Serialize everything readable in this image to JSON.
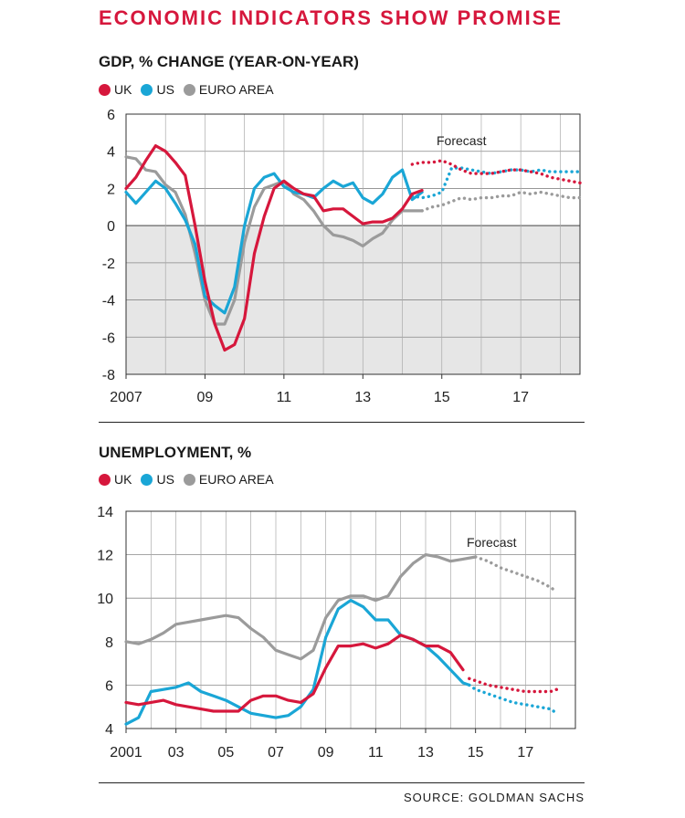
{
  "title": "ECONOMIC INDICATORS SHOW PROMISE",
  "source": "SOURCE: GOLDMAN SACHS",
  "colors": {
    "uk": "#d6173c",
    "us": "#1aa6d6",
    "euro": "#9b9b9b",
    "accent": "#d6173c",
    "negative_shade": "#e6e6e6"
  },
  "chart_data": [
    {
      "type": "line",
      "title": "GDP, % CHANGE (YEAR-ON-YEAR)",
      "legend": [
        "UK",
        "US",
        "EURO AREA"
      ],
      "annotation": "Forecast",
      "xlabel": "",
      "ylabel": "",
      "xlim": [
        2007,
        2018.5
      ],
      "ylim": [
        -8,
        6
      ],
      "yticks": [
        6,
        4,
        2,
        0,
        -2,
        -4,
        -6,
        -8
      ],
      "ytick_labels": [
        "6",
        "4",
        "2",
        "0",
        "-2",
        "-4",
        "-6",
        "-8"
      ],
      "xtick_labels": [
        "2007",
        "09",
        "11",
        "13",
        "15",
        "17"
      ],
      "xtick_values": [
        2007,
        2009,
        2011,
        2013,
        2015,
        2017
      ],
      "shade_below_zero": true,
      "series": [
        {
          "name": "UK",
          "key": "uk",
          "actual": {
            "x": [
              2007.0,
              2007.25,
              2007.5,
              2007.75,
              2008.0,
              2008.25,
              2008.5,
              2008.75,
              2009.0,
              2009.25,
              2009.5,
              2009.75,
              2010.0,
              2010.25,
              2010.5,
              2010.75,
              2011.0,
              2011.25,
              2011.5,
              2011.75,
              2012.0,
              2012.25,
              2012.5,
              2012.75,
              2013.0,
              2013.25,
              2013.5,
              2013.75,
              2014.0,
              2014.25,
              2014.5
            ],
            "y": [
              2.0,
              2.6,
              3.5,
              4.3,
              4.0,
              3.4,
              2.7,
              0.0,
              -3.0,
              -5.3,
              -6.7,
              -6.4,
              -5.0,
              -1.5,
              0.5,
              2.0,
              2.4,
              2.0,
              1.7,
              1.6,
              0.8,
              0.9,
              0.9,
              0.5,
              0.1,
              0.2,
              0.2,
              0.4,
              0.9,
              1.7,
              1.9
            ]
          },
          "forecast": {
            "x": [
              2014.25,
              2014.5,
              2014.75,
              2015.0,
              2015.25,
              2015.5,
              2015.75,
              2016.0,
              2016.25,
              2016.5,
              2016.75,
              2017.0,
              2017.25,
              2017.5,
              2017.75,
              2018.0,
              2018.25,
              2018.5
            ],
            "y": [
              3.3,
              3.4,
              3.4,
              3.5,
              3.3,
              3.0,
              2.8,
              2.8,
              2.8,
              2.9,
              3.0,
              3.0,
              2.9,
              2.8,
              2.6,
              2.5,
              2.4,
              2.3
            ]
          }
        },
        {
          "name": "US",
          "key": "us",
          "actual": {
            "x": [
              2007.0,
              2007.25,
              2007.5,
              2007.75,
              2008.0,
              2008.25,
              2008.5,
              2008.75,
              2009.0,
              2009.25,
              2009.5,
              2009.75,
              2010.0,
              2010.25,
              2010.5,
              2010.75,
              2011.0,
              2011.25,
              2011.5,
              2011.75,
              2012.0,
              2012.25,
              2012.5,
              2012.75,
              2013.0,
              2013.25,
              2013.5,
              2013.75,
              2014.0,
              2014.25,
              2014.5
            ],
            "y": [
              1.8,
              1.2,
              1.8,
              2.4,
              2.0,
              1.2,
              0.3,
              -1.0,
              -3.8,
              -4.3,
              -4.7,
              -3.3,
              0.0,
              2.0,
              2.6,
              2.8,
              2.1,
              1.8,
              1.7,
              1.5,
              2.0,
              2.4,
              2.1,
              2.3,
              1.5,
              1.2,
              1.7,
              2.6,
              3.0,
              1.4,
              1.8
            ]
          },
          "forecast": {
            "x": [
              2014.25,
              2014.5,
              2014.75,
              2015.0,
              2015.25,
              2015.5,
              2015.75,
              2016.0,
              2016.25,
              2016.5,
              2016.75,
              2017.0,
              2017.25,
              2017.5,
              2017.75,
              2018.0,
              2018.25,
              2018.5
            ],
            "y": [
              1.6,
              1.5,
              1.6,
              1.8,
              3.1,
              3.1,
              3.0,
              2.9,
              2.8,
              2.9,
              3.0,
              3.0,
              2.9,
              3.0,
              2.9,
              2.9,
              2.9,
              2.9
            ]
          }
        },
        {
          "name": "EURO AREA",
          "key": "euro",
          "actual": {
            "x": [
              2007.0,
              2007.25,
              2007.5,
              2007.75,
              2008.0,
              2008.25,
              2008.5,
              2008.75,
              2009.0,
              2009.25,
              2009.5,
              2009.75,
              2010.0,
              2010.25,
              2010.5,
              2010.75,
              2011.0,
              2011.25,
              2011.5,
              2011.75,
              2012.0,
              2012.25,
              2012.5,
              2012.75,
              2013.0,
              2013.25,
              2013.5,
              2013.75,
              2014.0,
              2014.25,
              2014.5
            ],
            "y": [
              3.7,
              3.6,
              3.0,
              2.9,
              2.2,
              1.8,
              0.6,
              -1.5,
              -4.0,
              -5.3,
              -5.3,
              -4.0,
              -0.9,
              1.0,
              2.0,
              2.2,
              2.4,
              1.7,
              1.4,
              0.8,
              0.0,
              -0.5,
              -0.6,
              -0.8,
              -1.1,
              -0.7,
              -0.4,
              0.3,
              0.8,
              0.8,
              0.8
            ]
          },
          "forecast": {
            "x": [
              2014.5,
              2014.75,
              2015.0,
              2015.25,
              2015.5,
              2015.75,
              2016.0,
              2016.25,
              2016.5,
              2016.75,
              2017.0,
              2017.25,
              2017.5,
              2017.75,
              2018.0,
              2018.25,
              2018.5
            ],
            "y": [
              0.8,
              1.0,
              1.1,
              1.3,
              1.5,
              1.4,
              1.5,
              1.5,
              1.6,
              1.6,
              1.8,
              1.7,
              1.8,
              1.7,
              1.6,
              1.5,
              1.5
            ]
          }
        }
      ]
    },
    {
      "type": "line",
      "title": "UNEMPLOYMENT, %",
      "legend": [
        "UK",
        "US",
        "EURO AREA"
      ],
      "annotation": "Forecast",
      "xlabel": "",
      "ylabel": "",
      "xlim": [
        2001,
        2019
      ],
      "ylim": [
        4,
        14
      ],
      "yticks": [
        14,
        12,
        10,
        8,
        6,
        4
      ],
      "ytick_labels": [
        "14",
        "12",
        "10",
        "8",
        "6",
        "4"
      ],
      "xtick_labels": [
        "2001",
        "03",
        "05",
        "07",
        "09",
        "11",
        "13",
        "15",
        "17"
      ],
      "xtick_values": [
        2001,
        2003,
        2005,
        2007,
        2009,
        2011,
        2013,
        2015,
        2017
      ],
      "shade_below_zero": false,
      "series": [
        {
          "name": "UK",
          "key": "uk",
          "actual": {
            "x": [
              2001.0,
              2001.5,
              2002.0,
              2002.5,
              2003.0,
              2003.5,
              2004.0,
              2004.5,
              2005.0,
              2005.5,
              2006.0,
              2006.5,
              2007.0,
              2007.5,
              2008.0,
              2008.5,
              2009.0,
              2009.5,
              2010.0,
              2010.5,
              2011.0,
              2011.5,
              2012.0,
              2012.5,
              2013.0,
              2013.5,
              2014.0,
              2014.5
            ],
            "y": [
              5.2,
              5.1,
              5.2,
              5.3,
              5.1,
              5.0,
              4.9,
              4.8,
              4.8,
              4.8,
              5.3,
              5.5,
              5.5,
              5.3,
              5.2,
              5.6,
              6.8,
              7.8,
              7.8,
              7.9,
              7.7,
              7.9,
              8.3,
              8.1,
              7.8,
              7.8,
              7.5,
              6.7
            ]
          },
          "forecast": {
            "x": [
              2014.75,
              2015.0,
              2015.5,
              2016.0,
              2016.5,
              2017.0,
              2017.5,
              2018.0,
              2018.25
            ],
            "y": [
              6.3,
              6.2,
              6.0,
              5.9,
              5.8,
              5.7,
              5.7,
              5.7,
              5.8
            ]
          }
        },
        {
          "name": "US",
          "key": "us",
          "actual": {
            "x": [
              2001.0,
              2001.5,
              2002.0,
              2002.5,
              2003.0,
              2003.5,
              2004.0,
              2004.5,
              2005.0,
              2005.5,
              2006.0,
              2006.5,
              2007.0,
              2007.5,
              2008.0,
              2008.5,
              2009.0,
              2009.5,
              2010.0,
              2010.5,
              2011.0,
              2011.5,
              2012.0,
              2012.5,
              2013.0,
              2013.5,
              2014.0,
              2014.5,
              2014.75
            ],
            "y": [
              4.2,
              4.5,
              5.7,
              5.8,
              5.9,
              6.1,
              5.7,
              5.5,
              5.3,
              5.0,
              4.7,
              4.6,
              4.5,
              4.6,
              5.0,
              5.8,
              8.2,
              9.5,
              9.9,
              9.6,
              9.0,
              9.0,
              8.3,
              8.1,
              7.8,
              7.3,
              6.7,
              6.1,
              6.0
            ]
          },
          "forecast": {
            "x": [
              2014.75,
              2015.0,
              2015.5,
              2016.0,
              2016.5,
              2017.0,
              2017.5,
              2018.0,
              2018.25
            ],
            "y": [
              6.0,
              5.8,
              5.6,
              5.4,
              5.2,
              5.1,
              5.0,
              4.9,
              4.7
            ]
          }
        },
        {
          "name": "EURO AREA",
          "key": "euro",
          "actual": {
            "x": [
              2001.0,
              2001.5,
              2002.0,
              2002.5,
              2003.0,
              2003.5,
              2004.0,
              2004.5,
              2005.0,
              2005.5,
              2006.0,
              2006.5,
              2007.0,
              2007.5,
              2008.0,
              2008.5,
              2009.0,
              2009.5,
              2010.0,
              2010.5,
              2011.0,
              2011.5,
              2012.0,
              2012.5,
              2013.0,
              2013.5,
              2014.0,
              2014.5,
              2015.0
            ],
            "y": [
              8.0,
              7.9,
              8.1,
              8.4,
              8.8,
              8.9,
              9.0,
              9.1,
              9.2,
              9.1,
              8.6,
              8.2,
              7.6,
              7.4,
              7.2,
              7.6,
              9.1,
              9.9,
              10.1,
              10.1,
              9.9,
              10.1,
              11.0,
              11.6,
              12.0,
              11.9,
              11.7,
              11.8,
              11.9
            ]
          },
          "forecast": {
            "x": [
              2015.0,
              2015.5,
              2016.0,
              2016.5,
              2017.0,
              2017.5,
              2018.0,
              2018.25
            ],
            "y": [
              11.9,
              11.7,
              11.4,
              11.2,
              11.0,
              10.8,
              10.5,
              10.3
            ]
          }
        }
      ]
    }
  ]
}
